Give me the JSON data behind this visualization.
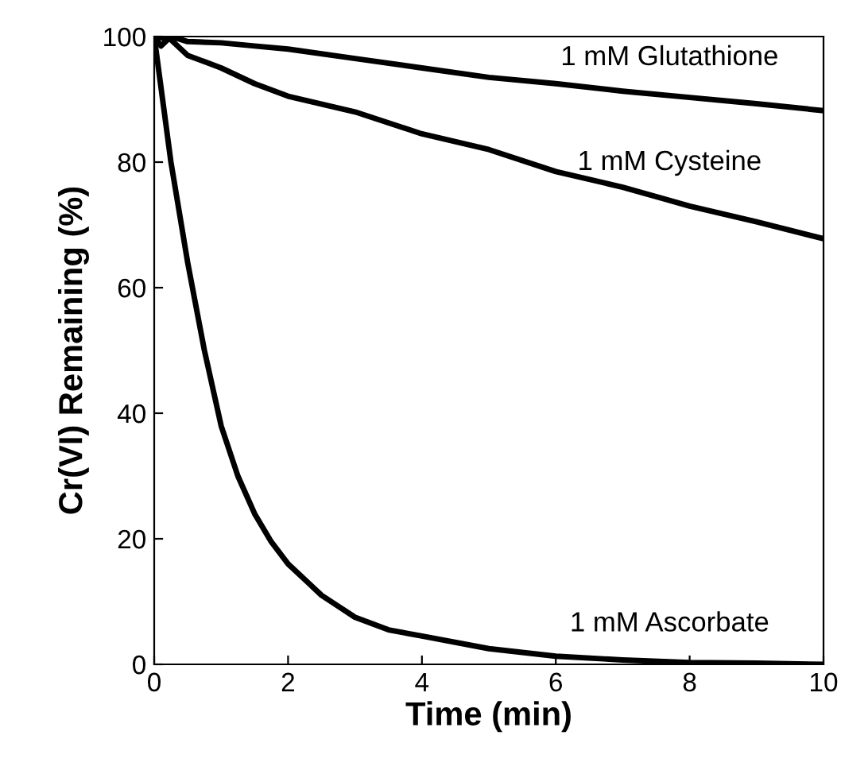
{
  "chart_data": {
    "type": "line",
    "xlabel": "Time (min)",
    "ylabel": "Cr(VI) Remaining (%)",
    "xlim": [
      0,
      10
    ],
    "ylim": [
      0,
      100
    ],
    "xticks": [
      0,
      2,
      4,
      6,
      8,
      10
    ],
    "yticks": [
      0,
      20,
      40,
      60,
      80,
      100
    ],
    "grid": false,
    "marker": "none",
    "line_style": "solid",
    "series": [
      {
        "name": "1 mM Glutathione",
        "color": "#000000",
        "x": [
          0,
          0.1,
          0.25,
          0.5,
          1,
          1.5,
          2,
          3,
          4,
          5,
          6,
          7,
          8,
          9,
          10
        ],
        "values": [
          100,
          98.5,
          100,
          99.2,
          99,
          98.5,
          98,
          96.5,
          95,
          93.5,
          92.5,
          91.3,
          90.3,
          89.3,
          88.2
        ]
      },
      {
        "name": "1 mM Cysteine",
        "color": "#000000",
        "x": [
          0,
          0.25,
          0.5,
          0.75,
          1,
          1.5,
          2,
          3,
          4,
          5,
          6,
          7,
          8,
          9,
          10
        ],
        "values": [
          100,
          99.5,
          97,
          96,
          95,
          92.5,
          90.5,
          88,
          84.5,
          82,
          78.5,
          76,
          73,
          70.5,
          67.8
        ]
      },
      {
        "name": "1 mM Ascorbate",
        "color": "#000000",
        "x": [
          0,
          0.25,
          0.5,
          0.75,
          1,
          1.25,
          1.5,
          1.75,
          2,
          2.3,
          2.5,
          3,
          3.5,
          4,
          5,
          6,
          7,
          8,
          9,
          10
        ],
        "values": [
          100,
          80,
          64,
          50,
          38,
          30,
          24,
          19.5,
          16,
          13,
          11,
          7.5,
          5.5,
          4.5,
          2.5,
          1.3,
          0.7,
          0.3,
          0.2,
          0
        ]
      }
    ]
  }
}
